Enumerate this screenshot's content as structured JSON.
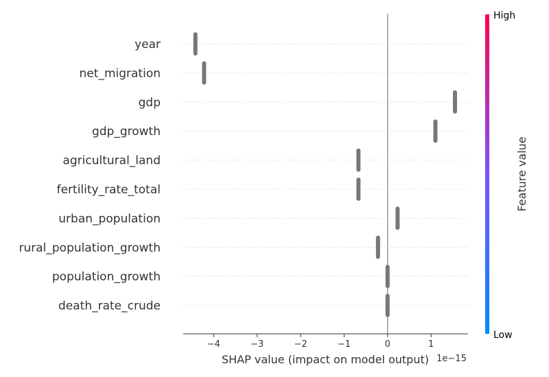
{
  "chart_data": {
    "type": "scatter",
    "subtype": "shap-summary-beeswarm",
    "features": [
      "year",
      "net_migration",
      "gdp",
      "gdp_growth",
      "agricultural_land",
      "fertility_rate_total",
      "urban_population",
      "rural_population_growth",
      "population_growth",
      "death_rate_crude"
    ],
    "shap_values": [
      -4.42,
      -4.22,
      1.55,
      1.1,
      -0.67,
      -0.67,
      0.23,
      -0.22,
      0.0,
      0.0
    ],
    "x_ticks": [
      -4,
      -3,
      -2,
      -1,
      0,
      1
    ],
    "x_tick_labels": [
      "−4",
      "−3",
      "−2",
      "−1",
      "0",
      "1"
    ],
    "xlim": [
      -4.7,
      1.85
    ],
    "xlabel": "SHAP value (impact on model output)",
    "x_offset_text": "1e−15",
    "point_color": "#777777",
    "zero_line_color": "#999999",
    "grid": true,
    "colorbar": {
      "title": "Feature value",
      "high_label": "High",
      "low_label": "Low",
      "high_color": "#ff0052",
      "mid_color": "#7c52ff",
      "low_color": "#008bfb"
    }
  }
}
